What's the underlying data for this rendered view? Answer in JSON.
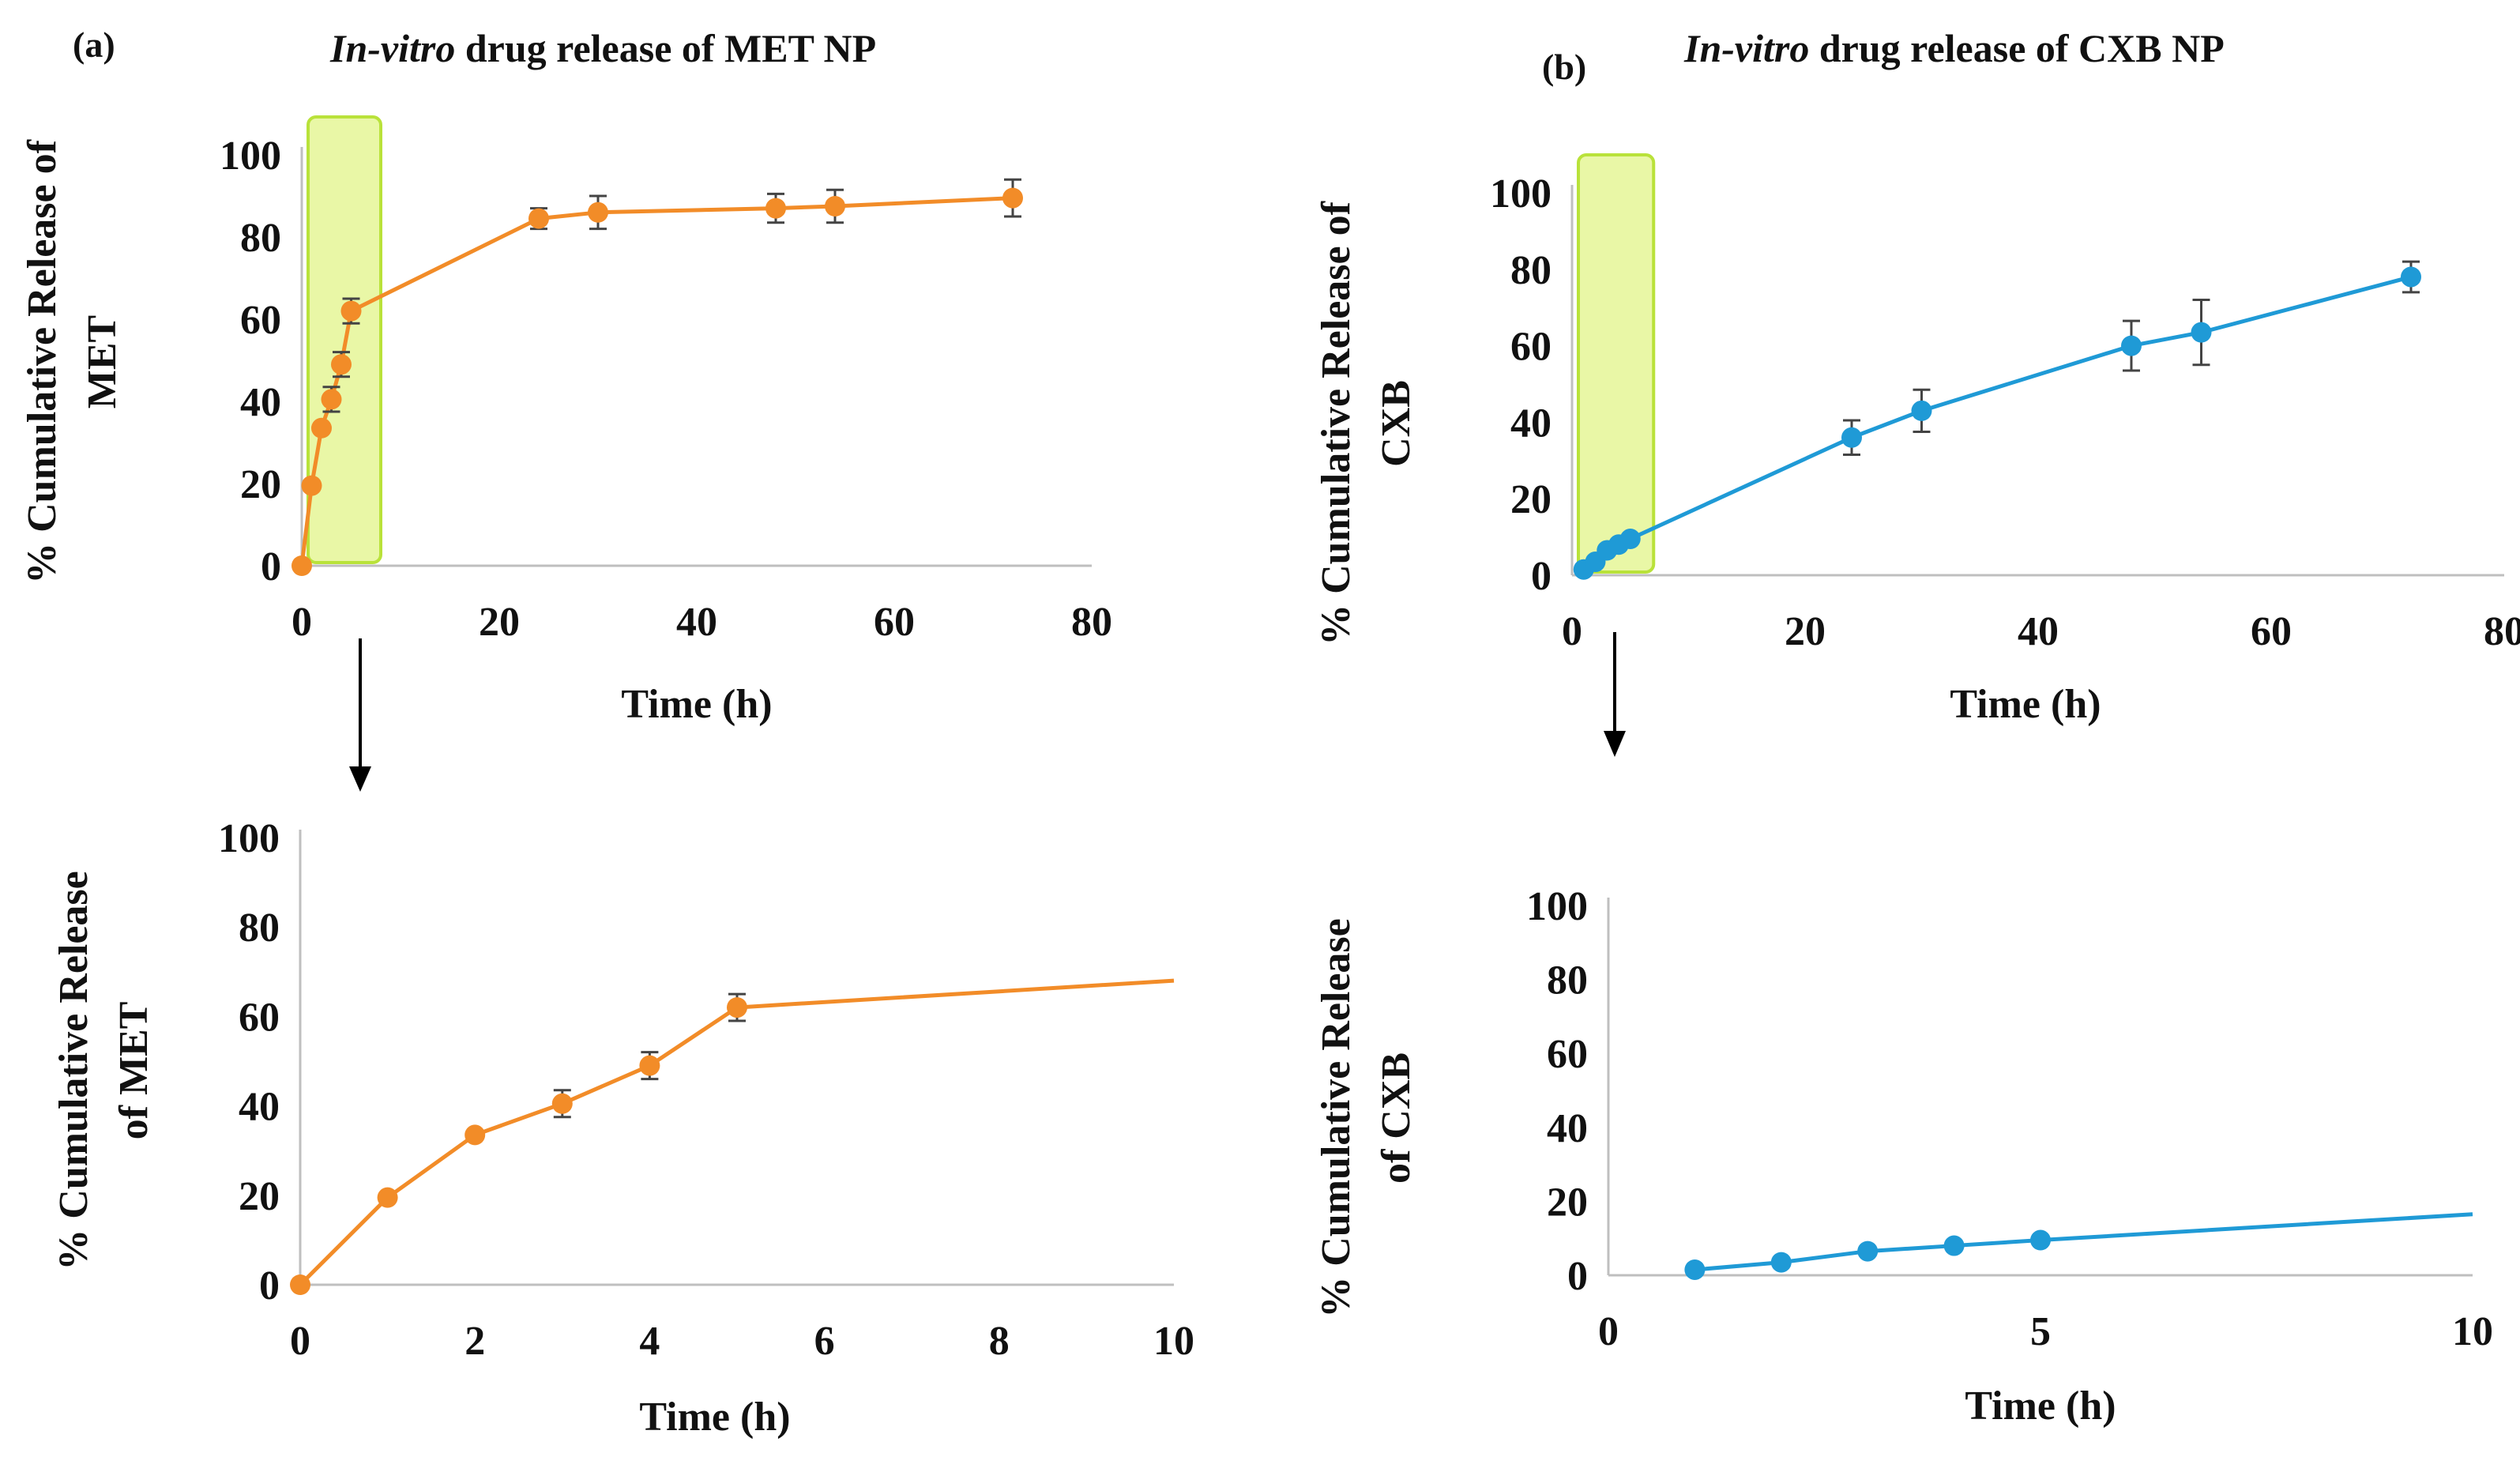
{
  "panels": {
    "a_label": "(a)",
    "b_label": "(b)"
  },
  "titles": {
    "a_italic": "In-vitro",
    "a_rest": " drug release of MET NP",
    "b_italic": "In-vitro",
    "b_rest": " drug release of CXB NP"
  },
  "colors": {
    "met_series": "#f28c28",
    "cxb_series": "#1f9ad6",
    "highlight_fill": "#e9f7a6",
    "highlight_stroke": "#b9e23a",
    "axis": "#bfbfbf",
    "errorbar": "#444444",
    "arrow": "#000000"
  },
  "chart_data": [
    {
      "id": "met_full",
      "type": "line",
      "title": "In-vitro drug release of MET NP",
      "xlabel": "Time (h)",
      "ylabel_lines": [
        "% Cumulative Release of",
        "MET"
      ],
      "xlim": [
        0,
        80
      ],
      "ylim": [
        0,
        100
      ],
      "xticks": [
        0,
        20,
        40,
        60,
        80
      ],
      "yticks": [
        0,
        20,
        40,
        60,
        80,
        100
      ],
      "highlight_range_x": [
        0,
        8
      ],
      "series": [
        {
          "name": "MET NP",
          "x": [
            0,
            1,
            2,
            3,
            4,
            5,
            24,
            30,
            48,
            54,
            72
          ],
          "y": [
            0,
            19.5,
            33.5,
            40.5,
            49,
            62,
            84.5,
            86,
            87,
            87.5,
            89.5
          ],
          "err": [
            0,
            0,
            0,
            3,
            3,
            3,
            2.5,
            4,
            3.5,
            4,
            4.5
          ]
        }
      ]
    },
    {
      "id": "met_zoom",
      "type": "line",
      "xlabel": "Time (h)",
      "ylabel_lines": [
        "% Cumulative Release",
        "of MET"
      ],
      "xlim": [
        0,
        10
      ],
      "ylim": [
        0,
        100
      ],
      "xticks": [
        0,
        2,
        4,
        6,
        8,
        10
      ],
      "yticks": [
        0,
        20,
        40,
        60,
        80,
        100
      ],
      "series": [
        {
          "name": "MET NP",
          "x": [
            0,
            1,
            2,
            3,
            4,
            5
          ],
          "y": [
            0,
            19.5,
            33.5,
            40.5,
            49,
            62
          ],
          "err": [
            0,
            0,
            0,
            3,
            3,
            3
          ],
          "continue_to": [
            10,
            68
          ]
        }
      ]
    },
    {
      "id": "cxb_full",
      "type": "line",
      "title": "In-vitro drug release of CXB NP",
      "xlabel": "Time (h)",
      "ylabel_lines": [
        "% Cumulative Release of",
        "CXB"
      ],
      "xlim": [
        0,
        80
      ],
      "ylim": [
        0,
        100
      ],
      "xticks": [
        0,
        20,
        40,
        60,
        80
      ],
      "yticks": [
        0,
        20,
        40,
        60,
        80,
        100
      ],
      "highlight_range_x": [
        0,
        7
      ],
      "series": [
        {
          "name": "CXB NP",
          "x": [
            1,
            2,
            3,
            4,
            5,
            24,
            30,
            48,
            54,
            72
          ],
          "y": [
            1.5,
            3.5,
            6.5,
            8,
            9.5,
            36,
            43,
            60,
            63.5,
            78
          ],
          "err": [
            0,
            0,
            1,
            1,
            0,
            4.5,
            5.5,
            6.5,
            8.5,
            4
          ]
        }
      ]
    },
    {
      "id": "cxb_zoom",
      "type": "line",
      "xlabel": "Time (h)",
      "ylabel_lines": [
        "% Cumulative Release",
        "of CXB"
      ],
      "xlim": [
        0,
        10
      ],
      "ylim": [
        0,
        100
      ],
      "xticks": [
        0,
        5,
        10
      ],
      "yticks": [
        0,
        20,
        40,
        60,
        80,
        100
      ],
      "series": [
        {
          "name": "CXB NP",
          "x": [
            1,
            2,
            3,
            4,
            5
          ],
          "y": [
            1.5,
            3.5,
            6.5,
            8,
            9.5
          ],
          "err": [
            0,
            0,
            1,
            1,
            0
          ],
          "continue_to": [
            10,
            16.5
          ]
        }
      ]
    }
  ]
}
